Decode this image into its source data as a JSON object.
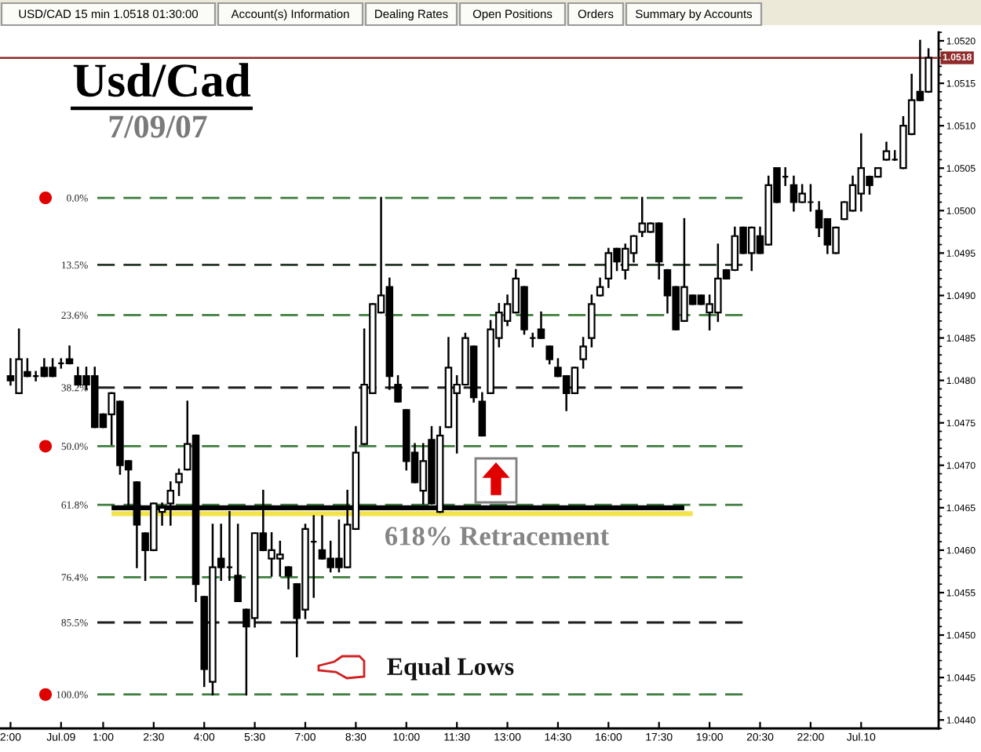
{
  "chart_data": {
    "type": "candlestick",
    "title": "Usd/Cad",
    "subtitle": "7/09/07",
    "categories": [
      "2:00",
      null,
      null,
      null,
      null,
      null,
      "Jul.09",
      null,
      null,
      null,
      null,
      "1:00",
      null,
      null,
      null,
      null,
      null,
      "2:30",
      null,
      null,
      null,
      null,
      null,
      "4:00",
      null,
      null,
      null,
      null,
      null,
      "5:30",
      null,
      null,
      null,
      null,
      null,
      "7:00",
      null,
      null,
      null,
      null,
      null,
      "8:30",
      null,
      null,
      null,
      null,
      null,
      "10:00",
      null,
      null,
      null,
      null,
      null,
      "11:30",
      null,
      null,
      null,
      null,
      null,
      "13:00",
      null,
      null,
      null,
      null,
      null,
      "14:30",
      null,
      null,
      null,
      null,
      null,
      "16:00",
      null,
      null,
      null,
      null,
      null,
      "17:30",
      null,
      null,
      null,
      null,
      null,
      "19:00",
      null,
      null,
      null,
      null,
      null,
      "20:30",
      null,
      null,
      null,
      null,
      null,
      "22:00",
      null,
      null,
      null,
      null,
      null,
      "Jul.10",
      null,
      null,
      null,
      null,
      null,
      null,
      null,
      null
    ],
    "ohlc": [
      [
        1.04805,
        1.04825,
        1.04795,
        1.048
      ],
      [
        1.04785,
        1.0486,
        1.04785,
        1.04825
      ],
      [
        1.0481,
        1.04825,
        1.04805,
        1.04805
      ],
      [
        1.04805,
        1.0481,
        1.048,
        1.04805
      ],
      [
        1.04815,
        1.04825,
        1.04805,
        1.04805
      ],
      [
        1.04815,
        1.04825,
        1.04805,
        1.04805
      ],
      [
        1.0482,
        1.04825,
        1.04815,
        1.0482
      ],
      [
        1.04825,
        1.0484,
        1.0482,
        1.0482
      ],
      [
        1.04805,
        1.04815,
        1.04795,
        1.04795
      ],
      [
        1.04805,
        1.04815,
        1.0479,
        1.04795
      ],
      [
        1.04805,
        1.04815,
        1.04745,
        1.04745
      ],
      [
        1.0476,
        1.0476,
        1.04745,
        1.04745
      ],
      [
        1.0476,
        1.04785,
        1.04725,
        1.04785
      ],
      [
        1.04775,
        1.04775,
        1.0469,
        1.047
      ],
      [
        1.04705,
        1.04705,
        1.0465,
        1.04695
      ],
      [
        1.0468,
        1.0468,
        1.0458,
        1.0463
      ],
      [
        1.0462,
        1.0462,
        1.04565,
        1.046
      ],
      [
        1.046,
        1.04655,
        1.046,
        1.04655
      ],
      [
        1.04645,
        1.04655,
        1.0463,
        1.0465
      ],
      [
        1.04655,
        1.0468,
        1.0463,
        1.0467
      ],
      [
        1.0468,
        1.04695,
        1.04665,
        1.0469
      ],
      [
        1.04695,
        1.04775,
        1.04695,
        1.04725
      ],
      [
        1.04735,
        1.04735,
        1.0454,
        1.0456
      ],
      [
        1.04545,
        1.04545,
        1.0444,
        1.0446
      ],
      [
        1.04445,
        1.0463,
        1.0443,
        1.0458
      ],
      [
        1.0459,
        1.0463,
        1.04565,
        1.0458
      ],
      [
        1.0458,
        1.04645,
        1.04565,
        1.0458
      ],
      [
        1.0457,
        1.0463,
        1.0454,
        1.0454
      ],
      [
        1.0453,
        1.0453,
        1.0443,
        1.0451
      ],
      [
        1.0452,
        1.0462,
        1.0451,
        1.0462
      ],
      [
        1.0462,
        1.0467,
        1.046,
        1.046
      ],
      [
        1.0459,
        1.0462,
        1.0457,
        1.046
      ],
      [
        1.0459,
        1.0461,
        1.0457,
        1.04595
      ],
      [
        1.0458,
        1.0458,
        1.04555,
        1.0457
      ],
      [
        1.0456,
        1.0456,
        1.04475,
        1.0452
      ],
      [
        1.0453,
        1.0463,
        1.0452,
        1.04625
      ],
      [
        1.0461,
        1.0464,
        1.04545,
        1.0461
      ],
      [
        1.046,
        1.0464,
        1.0459,
        1.0459
      ],
      [
        1.0459,
        1.0461,
        1.04575,
        1.0458
      ],
      [
        1.0459,
        1.04635,
        1.04575,
        1.0458
      ],
      [
        1.0458,
        1.0467,
        1.0458,
        1.0463
      ],
      [
        1.04625,
        1.04745,
        1.04625,
        1.04715
      ],
      [
        1.04725,
        1.0486,
        1.04725,
        1.04795
      ],
      [
        1.04785,
        1.0489,
        1.04785,
        1.0489
      ],
      [
        1.0488,
        1.05015,
        1.0488,
        1.049
      ],
      [
        1.0491,
        1.0492,
        1.0479,
        1.04805
      ],
      [
        1.04795,
        1.04805,
        1.04775,
        1.04775
      ],
      [
        1.04765,
        1.04765,
        1.04695,
        1.04705
      ],
      [
        1.04715,
        1.04725,
        1.0468,
        1.0468
      ],
      [
        1.0467,
        1.04725,
        1.04655,
        1.04705
      ],
      [
        1.0473,
        1.04745,
        1.04655,
        1.04655
      ],
      [
        1.04645,
        1.04745,
        1.04645,
        1.04735
      ],
      [
        1.04745,
        1.0485,
        1.04745,
        1.04815
      ],
      [
        1.04785,
        1.04805,
        1.04715,
        1.04795
      ],
      [
        1.04795,
        1.04855,
        1.04795,
        1.0485
      ],
      [
        1.0484,
        1.0484,
        1.04775,
        1.0478
      ],
      [
        1.04775,
        1.04785,
        1.04735,
        1.04735
      ],
      [
        1.04785,
        1.0487,
        1.04785,
        1.0486
      ],
      [
        1.0485,
        1.0489,
        1.0484,
        1.0488
      ],
      [
        1.0487,
        1.049,
        1.04865,
        1.0489
      ],
      [
        1.0488,
        1.0493,
        1.0488,
        1.0492
      ],
      [
        1.0491,
        1.0491,
        1.04855,
        1.0486
      ],
      [
        1.0485,
        1.04855,
        1.0484,
        1.0485
      ],
      [
        1.0486,
        1.0488,
        1.0485,
        1.0485
      ],
      [
        1.0484,
        1.0484,
        1.0482,
        1.04825
      ],
      [
        1.04815,
        1.04825,
        1.04805,
        1.04805
      ],
      [
        1.04805,
        1.04805,
        1.04765,
        1.04785
      ],
      [
        1.04785,
        1.04815,
        1.04785,
        1.04815
      ],
      [
        1.04825,
        1.0485,
        1.04815,
        1.0484
      ],
      [
        1.0485,
        1.049,
        1.0484,
        1.0489
      ],
      [
        1.049,
        1.0492,
        1.049,
        1.0491
      ],
      [
        1.0492,
        1.04955,
        1.0491,
        1.0495
      ],
      [
        1.04955,
        1.04955,
        1.0493,
        1.0494
      ],
      [
        1.0493,
        1.0496,
        1.0492,
        1.04955
      ],
      [
        1.0495,
        1.0497,
        1.0494,
        1.0497
      ],
      [
        1.04975,
        1.05015,
        1.0497,
        1.04985
      ],
      [
        1.04975,
        1.04985,
        1.04975,
        1.04985
      ],
      [
        1.04985,
        1.04985,
        1.0492,
        1.0494
      ],
      [
        1.0493,
        1.0493,
        1.0488,
        1.049
      ],
      [
        1.0491,
        1.0491,
        1.0486,
        1.0486
      ],
      [
        1.0487,
        1.0499,
        1.0487,
        1.0491
      ],
      [
        1.049,
        1.049,
        1.0489,
        1.0489
      ],
      [
        1.049,
        1.049,
        1.0489,
        1.0489
      ],
      [
        1.0488,
        1.049,
        1.0486,
        1.0489
      ],
      [
        1.0488,
        1.0496,
        1.0487,
        1.0492
      ],
      [
        1.0493,
        1.0493,
        1.0492,
        1.0492
      ],
      [
        1.0493,
        1.0498,
        1.0493,
        1.0497
      ],
      [
        1.0498,
        1.0498,
        1.0495,
        1.0495
      ],
      [
        1.0495,
        1.0498,
        1.0493,
        1.0498
      ],
      [
        1.0497,
        1.0498,
        1.0495,
        1.0495
      ],
      [
        1.0496,
        1.0504,
        1.0496,
        1.0503
      ],
      [
        1.0505,
        1.0505,
        1.0501,
        1.0501
      ],
      [
        1.0504,
        1.0505,
        1.0503,
        1.0504
      ],
      [
        1.0503,
        1.0504,
        1.05,
        1.0501
      ],
      [
        1.0501,
        1.0503,
        1.0501,
        1.0502
      ],
      [
        1.0501,
        1.0503,
        1.05,
        1.0501
      ],
      [
        1.05,
        1.0501,
        1.0497,
        1.0498
      ],
      [
        1.0499,
        1.0499,
        1.0495,
        1.0496
      ],
      [
        1.0495,
        1.0498,
        1.0495,
        1.0498
      ],
      [
        1.0499,
        1.0501,
        1.0499,
        1.0501
      ],
      [
        1.05,
        1.0504,
        1.05,
        1.0503
      ],
      [
        1.0502,
        1.0509,
        1.05,
        1.0505
      ],
      [
        1.0504,
        1.0504,
        1.0502,
        1.0503
      ],
      [
        1.0504,
        1.0505,
        1.0504,
        1.0505
      ],
      [
        1.0506,
        1.0508,
        1.0506,
        1.0507
      ],
      [
        1.0506,
        1.0507,
        1.0506,
        1.0506
      ],
      [
        1.0505,
        1.0511,
        1.0505,
        1.051
      ],
      [
        1.0509,
        1.0516,
        1.0509,
        1.0513
      ],
      [
        1.0514,
        1.052,
        1.0513,
        1.0513
      ],
      [
        1.0514,
        1.0519,
        1.0514,
        1.0518
      ]
    ],
    "series": [
      {
        "type": "line",
        "color": "#000000",
        "values": [
          null,
          null,
          null,
          null,
          null,
          null,
          null,
          null,
          null,
          null,
          null,
          null,
          1.0465,
          1.0465,
          1.0465,
          1.0465,
          1.0465,
          1.0465,
          1.0465,
          1.0465,
          1.0465,
          1.0465,
          1.0465,
          1.0465,
          1.0465,
          1.0465,
          1.0465,
          1.0465,
          1.0465,
          1.0465,
          1.0465,
          1.0465,
          1.0465,
          1.0465,
          1.0465,
          1.0465,
          1.0465,
          1.0465,
          1.0465,
          1.0465,
          1.0465,
          1.0465,
          1.0465,
          1.0465,
          1.0465,
          1.0465,
          1.0465,
          1.0465,
          1.0465,
          1.0465,
          1.0465,
          1.0465,
          1.0465,
          1.0465,
          1.0465,
          1.0465,
          1.0465,
          1.0465,
          1.0465,
          1.0465,
          1.0465,
          1.0465,
          1.0465,
          1.0465,
          1.0465,
          1.0465,
          1.0465,
          1.0465,
          1.0465,
          1.0465,
          1.0465,
          1.0465,
          1.0465,
          1.0465,
          1.0465,
          1.0465,
          1.0465,
          1.0465,
          1.0465,
          1.0465,
          1.0465,
          null,
          null,
          null,
          null,
          null,
          null,
          null,
          null,
          null,
          null,
          null,
          null,
          null,
          null,
          null,
          null,
          null,
          null,
          null,
          null,
          null,
          null,
          null,
          null,
          null,
          null,
          null,
          null,
          null
        ]
      },
      {
        "type": "line",
        "color": "#f2e34a",
        "values": [
          null,
          null,
          null,
          null,
          null,
          null,
          null,
          null,
          null,
          null,
          null,
          null,
          1.04643,
          1.04643,
          1.04643,
          1.04643,
          1.04643,
          1.04643,
          1.04643,
          1.04643,
          1.04643,
          1.04643,
          1.04643,
          1.04643,
          1.04643,
          1.04643,
          1.04643,
          1.04643,
          1.04643,
          1.04643,
          1.04643,
          1.04643,
          1.04643,
          1.04643,
          1.04643,
          1.04643,
          1.04643,
          1.04643,
          1.04643,
          1.04643,
          1.04643,
          1.04643,
          1.04643,
          1.04643,
          1.04643,
          1.04643,
          1.04643,
          1.04643,
          1.04643,
          1.04643,
          1.04643,
          1.04643,
          1.04643,
          1.04643,
          1.04643,
          1.04643,
          1.04643,
          1.04643,
          1.04643,
          1.04643,
          1.04643,
          1.04643,
          1.04643,
          1.04643,
          1.04643,
          1.04643,
          1.04643,
          1.04643,
          1.04643,
          1.04643,
          1.04643,
          1.04643,
          1.04643,
          1.04643,
          1.04643,
          1.04643,
          1.04643,
          1.04643,
          1.04643,
          1.04643,
          1.04643,
          1.04643,
          null,
          null,
          null,
          null,
          null,
          null,
          null,
          null,
          null,
          null,
          null,
          null,
          null,
          null,
          null,
          null,
          null,
          null,
          null,
          null,
          null,
          null,
          null,
          null,
          null,
          null,
          null,
          null
        ]
      }
    ],
    "ylim": [
      1.0439,
      1.0521
    ],
    "yticks": [
      {
        "value": 1.044,
        "label": "1.0440"
      },
      {
        "value": 1.0445,
        "label": "1.0445"
      },
      {
        "value": 1.045,
        "label": "1.0450"
      },
      {
        "value": 1.0455,
        "label": "1.0455"
      },
      {
        "value": 1.046,
        "label": "1.0460"
      },
      {
        "value": 1.0465,
        "label": "1.0465"
      },
      {
        "value": 1.047,
        "label": "1.0470"
      },
      {
        "value": 1.0475,
        "label": "1.0475"
      },
      {
        "value": 1.048,
        "label": "1.0480"
      },
      {
        "value": 1.0485,
        "label": "1.0485"
      },
      {
        "value": 1.049,
        "label": "1.0490"
      },
      {
        "value": 1.0495,
        "label": "1.0495"
      },
      {
        "value": 1.05,
        "label": "1.0500"
      },
      {
        "value": 1.0505,
        "label": "1.0505"
      },
      {
        "value": 1.051,
        "label": "1.0510"
      },
      {
        "value": 1.0515,
        "label": "1.0515"
      },
      {
        "value": 1.052,
        "label": "1.0520"
      }
    ],
    "y2lim": [
      106.84,
      -33.33
    ],
    "y2ticks": [
      {
        "value": 0,
        "label": "0.0%"
      },
      {
        "value": 13.5,
        "label": "13.5%"
      },
      {
        "value": 23.6,
        "label": "23.6%"
      },
      {
        "value": 38.2,
        "label": "38.2%"
      },
      {
        "value": 50,
        "label": "50.0%"
      },
      {
        "value": 61.8,
        "label": "61.8%"
      },
      {
        "value": 76.4,
        "label": "76.4%"
      },
      {
        "value": 85.5,
        "label": "85.5%"
      },
      {
        "value": 100,
        "label": "100.0%"
      }
    ],
    "ref_lines": [
      {
        "axis": "y2",
        "value": 0,
        "color": "#3d7d3d",
        "line_style": "dashed"
      },
      {
        "axis": "y2",
        "value": 13.5,
        "color": "#263626",
        "line_style": "dashed"
      },
      {
        "axis": "y2",
        "value": 23.6,
        "color": "#3d7d3d",
        "line_style": "dashed"
      },
      {
        "axis": "y2",
        "value": 38.2,
        "color": "#1e1e1e",
        "line_style": "dashed"
      },
      {
        "axis": "y2",
        "value": 50,
        "color": "#3d7d3d",
        "line_style": "dashed"
      },
      {
        "axis": "y2",
        "value": 61.8,
        "color": "#3d7d3d",
        "line_style": "dashed"
      },
      {
        "axis": "y2",
        "value": 76.4,
        "color": "#3d7d3d",
        "line_style": "dashed"
      },
      {
        "axis": "y2",
        "value": 85.5,
        "color": "#1e1e1e",
        "line_style": "dashed"
      },
      {
        "axis": "y2",
        "value": 100,
        "color": "#3d7d3d",
        "line_style": "dashed"
      },
      {
        "axis": "y",
        "value": 1.0518,
        "label": "1.0518",
        "color": "#8f2a2a",
        "line_style": "solid"
      }
    ],
    "annotations": [
      "USD/CAD 15 min 1.0518 01:30:00",
      "Account(s) Information",
      "Dealing Rates",
      "Open Positions",
      "Orders",
      "Summary by Accounts",
      "618% Retracement",
      "Equal Lows"
    ]
  }
}
